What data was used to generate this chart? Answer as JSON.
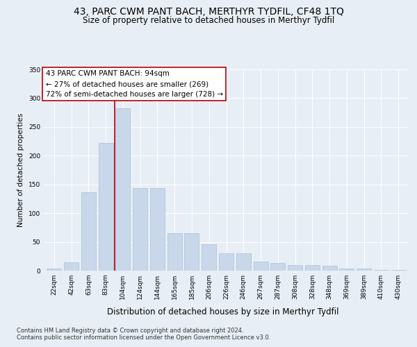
{
  "title": "43, PARC CWM PANT BACH, MERTHYR TYDFIL, CF48 1TQ",
  "subtitle": "Size of property relative to detached houses in Merthyr Tydfil",
  "xlabel": "Distribution of detached houses by size in Merthyr Tydfil",
  "ylabel": "Number of detached properties",
  "footnote1": "Contains HM Land Registry data © Crown copyright and database right 2024.",
  "footnote2": "Contains public sector information licensed under the Open Government Licence v3.0.",
  "annotation_line1": "43 PARC CWM PANT BACH: 94sqm",
  "annotation_line2": "← 27% of detached houses are smaller (269)",
  "annotation_line3": "72% of semi-detached houses are larger (728) →",
  "bar_categories": [
    "22sqm",
    "42sqm",
    "63sqm",
    "83sqm",
    "104sqm",
    "124sqm",
    "144sqm",
    "165sqm",
    "185sqm",
    "206sqm",
    "226sqm",
    "246sqm",
    "267sqm",
    "287sqm",
    "308sqm",
    "328sqm",
    "348sqm",
    "369sqm",
    "389sqm",
    "410sqm",
    "430sqm"
  ],
  "bar_values": [
    4,
    14,
    136,
    222,
    283,
    144,
    144,
    65,
    65,
    46,
    30,
    30,
    16,
    13,
    10,
    10,
    8,
    4,
    4,
    1,
    1
  ],
  "bar_color": "#c8d8ea",
  "bar_edgecolor": "#a8c0d8",
  "vline_color": "#bb0000",
  "vline_x": 3.5,
  "background_color": "#e8eef5",
  "ylim_max": 350,
  "yticks": [
    0,
    50,
    100,
    150,
    200,
    250,
    300,
    350
  ],
  "grid_color": "#ffffff",
  "title_fontsize": 10,
  "subtitle_fontsize": 8.5,
  "xlabel_fontsize": 8.5,
  "ylabel_fontsize": 7.5,
  "tick_fontsize": 6.5,
  "annotation_fontsize": 7.5,
  "footnote_fontsize": 6
}
